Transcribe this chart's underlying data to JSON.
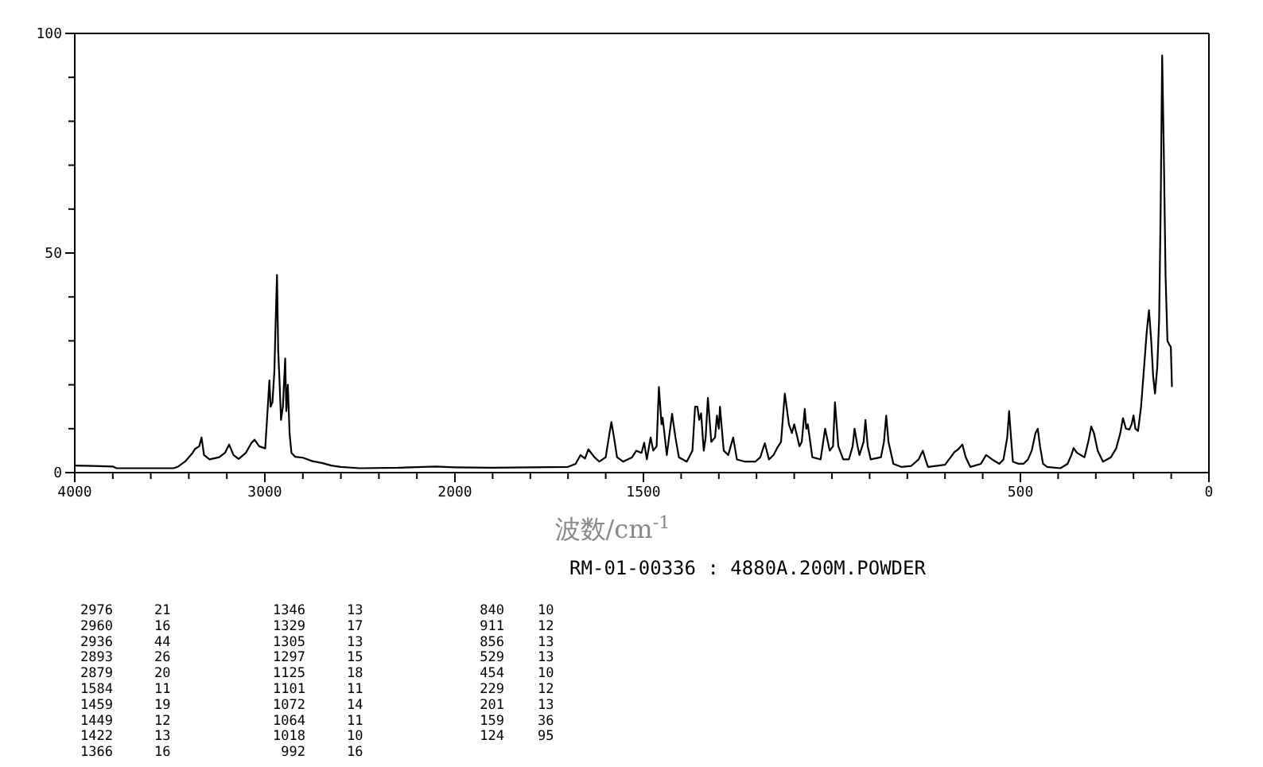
{
  "chart_data": [
    {
      "type": "line",
      "color": "#000000",
      "x": [
        4000,
        3900,
        3800,
        3780,
        3600,
        3480,
        3459,
        3420,
        3380,
        3367,
        3345,
        3333,
        3320,
        3291,
        3240,
        3210,
        3188,
        3165,
        3138,
        3100,
        3070,
        3054,
        3030,
        2998,
        2985,
        2976,
        2970,
        2960,
        2950,
        2944,
        2936,
        2930,
        2922,
        2915,
        2905,
        2893,
        2887,
        2879,
        2870,
        2860,
        2840,
        2800,
        2750,
        2700,
        2650,
        2600,
        2500,
        2300,
        2100,
        2000
      ],
      "values": [
        1.6,
        1.5,
        1.4,
        1.0,
        1.0,
        1.0,
        1.3,
        2.5,
        4.5,
        5.4,
        6,
        8,
        4,
        3,
        3.5,
        4.5,
        6.4,
        4,
        3.1,
        4.5,
        6.8,
        7.5,
        6,
        5.5,
        14.6,
        21,
        15,
        16,
        23,
        33,
        45,
        28,
        20,
        12,
        15,
        26,
        14,
        20,
        9,
        4.5,
        3.6,
        3.4,
        2.6,
        2.2,
        1.6,
        1.3,
        1.0,
        1.1,
        1.4,
        1.2
      ],
      "xlim": [
        4000,
        2000
      ],
      "ylim": [
        0,
        100
      ],
      "xticks": [
        4000,
        {
          "value": 3800,
          "label": null
        },
        {
          "value": 3600,
          "label": null
        },
        {
          "value": 3400,
          "label": null
        },
        {
          "value": 3200,
          "label": null
        },
        3000,
        {
          "value": 2800,
          "label": null
        },
        {
          "value": 2600,
          "label": null
        },
        {
          "value": 2400,
          "label": null
        },
        {
          "value": 2200,
          "label": null
        },
        2000
      ],
      "yticks": [
        0,
        {
          "value": 10,
          "label": null
        },
        {
          "value": 20,
          "label": null
        },
        {
          "value": 30,
          "label": null
        },
        {
          "value": 40,
          "label": null
        },
        50,
        {
          "value": 60,
          "label": null
        },
        {
          "value": 70,
          "label": null
        },
        {
          "value": 80,
          "label": null
        },
        {
          "value": 90,
          "label": null
        },
        100
      ]
    },
    {
      "type": "line",
      "color": "#000000",
      "xlabel": "波数/cm$^{-1}$",
      "tick_labels": "x",
      "annotations": [
        "RM-01-00336 : 4880A.200M.POWDER",
        "2976",
        "21",
        "2960",
        "16",
        "2936",
        "44",
        "2893",
        "26",
        "2879",
        "20",
        "1584",
        "11",
        "1459",
        "19",
        "1449",
        "12",
        "1422",
        "13",
        "1366",
        "16",
        "1346",
        "13",
        "1329",
        "17",
        "1305",
        "13",
        "1297",
        "15",
        "1125",
        "18",
        "1101",
        "11",
        "1072",
        "14",
        "1064",
        "11",
        "1018",
        "10",
        "992",
        "16",
        "840",
        "10",
        "911",
        "12",
        "856",
        "13",
        "529",
        "13",
        "454",
        "10",
        "229",
        "12",
        "201",
        "13",
        "159",
        "36",
        "124",
        "95"
      ],
      "x": [
        2000,
        1900,
        1800,
        1700,
        1680,
        1667,
        1655,
        1646,
        1630,
        1617,
        1600,
        1590,
        1585,
        1578,
        1570,
        1554,
        1530,
        1519,
        1505,
        1498,
        1491,
        1481,
        1474,
        1465,
        1459,
        1452,
        1449,
        1438,
        1424,
        1415,
        1406,
        1385,
        1370,
        1363,
        1357,
        1352,
        1347,
        1340,
        1335,
        1329,
        1320,
        1310,
        1305,
        1300,
        1297,
        1287,
        1275,
        1262,
        1252,
        1230,
        1203,
        1190,
        1178,
        1167,
        1155,
        1146,
        1135,
        1125,
        1114,
        1106,
        1100,
        1086,
        1080,
        1072,
        1068,
        1064,
        1052,
        1030,
        1018,
        1006,
        997,
        992,
        983,
        970,
        955,
        945,
        940,
        932,
        927,
        916,
        911,
        905,
        897,
        870,
        862,
        856,
        850,
        837,
        816,
        790,
        770,
        759,
        750,
        745,
        700,
        685,
        675,
        665,
        654,
        645,
        633,
        605,
        591,
        575,
        556,
        545,
        535,
        530,
        525,
        520,
        505,
        492,
        480,
        470,
        460,
        454,
        448,
        440,
        429,
        394,
        375,
        365,
        359,
        350,
        330,
        320,
        312,
        305,
        295,
        281,
        260,
        246,
        235,
        228,
        220,
        211,
        205,
        200,
        195,
        188,
        180,
        172,
        165,
        159,
        153,
        148,
        143,
        137,
        132,
        128,
        124,
        120,
        115,
        110,
        104,
        101,
        98
      ],
      "values": [
        1.2,
        1.1,
        1.2,
        1.3,
        2.0,
        4,
        3.2,
        5.3,
        3.5,
        2.5,
        3.5,
        9,
        11.5,
        8,
        3.5,
        2.5,
        3.5,
        5,
        4.5,
        6.8,
        3,
        8,
        5,
        6,
        19.5,
        11,
        12.5,
        4,
        13.4,
        8,
        3.5,
        2.5,
        5,
        15,
        15,
        12,
        13.5,
        5,
        8,
        17,
        7,
        8,
        13,
        10,
        15,
        5,
        4,
        8,
        3,
        2.5,
        2.5,
        3.5,
        6.7,
        3,
        4,
        5.5,
        7,
        18,
        11,
        9,
        11,
        6,
        7,
        14.5,
        10,
        11,
        3.5,
        3,
        10,
        5,
        6,
        16,
        6,
        3,
        3,
        6,
        10,
        6,
        4,
        7,
        12,
        6,
        3,
        3.5,
        7,
        13,
        7,
        2,
        1.3,
        1.5,
        3,
        5,
        2.5,
        1.3,
        1.8,
        3.5,
        4.7,
        5.3,
        6.4,
        3.5,
        1.3,
        2,
        4,
        3,
        2,
        3,
        8,
        14,
        8,
        2.5,
        2,
        2,
        3,
        5,
        9,
        10,
        6,
        2,
        1.3,
        1,
        2,
        4,
        5.6,
        4.5,
        3.5,
        7,
        10.5,
        9,
        5,
        2.5,
        3.5,
        5.5,
        9,
        12.4,
        10,
        9.8,
        11,
        13,
        10,
        9.5,
        15,
        24,
        32,
        37,
        30,
        22,
        18,
        24,
        35,
        60,
        95,
        75,
        44.8,
        30,
        29,
        28.6,
        19.5
      ],
      "xlim": [
        2000,
        0
      ],
      "ylim": [
        0,
        100
      ],
      "xticks": [
        {
          "value": 2000,
          "label": null
        },
        {
          "value": 1900,
          "label": null
        },
        {
          "value": 1800,
          "label": null
        },
        {
          "value": 1700,
          "label": null
        },
        {
          "value": 1600,
          "label": null
        },
        1500,
        {
          "value": 1400,
          "label": null
        },
        {
          "value": 1300,
          "label": null
        },
        {
          "value": 1200,
          "label": null
        },
        {
          "value": 1100,
          "label": null
        },
        {
          "value": 1000,
          "label": null
        },
        {
          "value": 900,
          "label": null
        },
        {
          "value": 800,
          "label": null
        },
        {
          "value": 700,
          "label": null
        },
        {
          "value": 600,
          "label": null
        },
        500,
        {
          "value": 400,
          "label": null
        },
        {
          "value": 300,
          "label": null
        },
        {
          "value": 200,
          "label": null
        },
        {
          "value": 100,
          "label": null
        },
        0
      ]
    }
  ]
}
